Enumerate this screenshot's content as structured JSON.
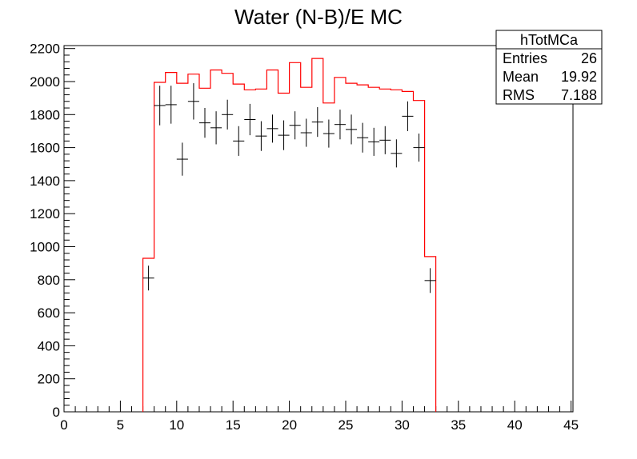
{
  "chart_data": {
    "type": "histogram",
    "title": "Water (N-B)/E MC",
    "xlabel": "",
    "ylabel": "",
    "xlim": [
      0,
      45
    ],
    "ylim": [
      0,
      2300
    ],
    "grid": false,
    "x_ticks": [
      0,
      5,
      10,
      15,
      20,
      25,
      30,
      35,
      40,
      45
    ],
    "y_ticks": [
      0,
      200,
      400,
      600,
      800,
      1000,
      1200,
      1400,
      1600,
      1800,
      2000,
      2200
    ],
    "stats_box": {
      "title": "hTotMCa",
      "rows": [
        {
          "label": "Entries",
          "value": "26"
        },
        {
          "label": "Mean",
          "value": "19.92"
        },
        {
          "label": "RMS",
          "value": "7.188"
        }
      ]
    },
    "series": [
      {
        "style": "step-line",
        "color": "#ff0000",
        "bin_edges": [
          7,
          8,
          9,
          10,
          11,
          12,
          13,
          14,
          15,
          16,
          17,
          18,
          19,
          20,
          21,
          22,
          23,
          24,
          25,
          26,
          27,
          28,
          29,
          30,
          31,
          32,
          33
        ],
        "values": [
          930,
          1995,
          2055,
          1990,
          2045,
          1960,
          2070,
          2050,
          1985,
          1950,
          1955,
          2070,
          1930,
          2115,
          1965,
          2140,
          1870,
          2025,
          1990,
          1980,
          1965,
          1955,
          1950,
          1940,
          1885,
          940
        ]
      },
      {
        "style": "crosses",
        "color": "#000000",
        "x": [
          7.5,
          8.5,
          9.5,
          10.5,
          11.5,
          12.5,
          13.5,
          14.5,
          15.5,
          16.5,
          17.5,
          18.5,
          19.5,
          20.5,
          21.5,
          22.5,
          23.5,
          24.5,
          25.5,
          26.5,
          27.5,
          28.5,
          29.5,
          30.5,
          31.5,
          32.5
        ],
        "y": [
          810,
          1855,
          1860,
          1530,
          1880,
          1750,
          1720,
          1800,
          1640,
          1770,
          1670,
          1715,
          1675,
          1735,
          1690,
          1755,
          1685,
          1740,
          1710,
          1660,
          1635,
          1645,
          1565,
          1790,
          1600,
          795
        ],
        "yerr": [
          75,
          120,
          115,
          100,
          110,
          90,
          100,
          90,
          90,
          95,
          90,
          85,
          90,
          85,
          85,
          90,
          85,
          90,
          90,
          90,
          85,
          85,
          85,
          90,
          85,
          75
        ]
      }
    ]
  }
}
